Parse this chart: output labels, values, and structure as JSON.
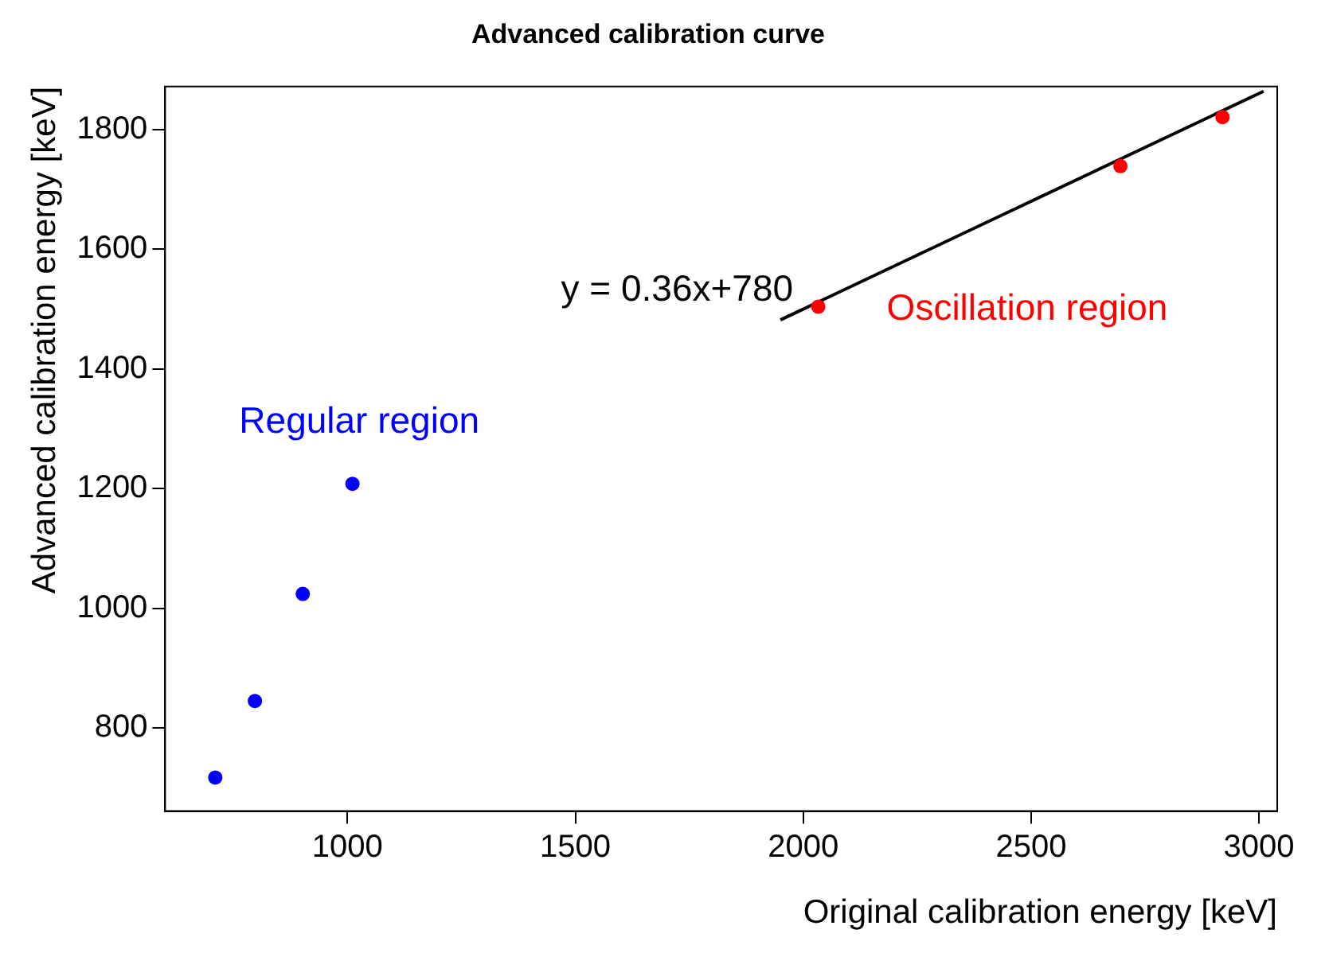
{
  "chart_data": {
    "type": "scatter",
    "title": "Advanced calibration curve",
    "xlabel": "Original calibration energy [keV]",
    "ylabel": "Advanced calibration energy [keV]",
    "series": [
      {
        "color": "#0000ff",
        "x": [
          710,
          797,
          902,
          1011
        ],
        "values": [
          717,
          845,
          1024,
          1208
        ]
      },
      {
        "color": "#ff0000",
        "x": [
          2033,
          2696,
          2920
        ],
        "values": [
          1504,
          1739,
          1821
        ]
      },
      {
        "type": "line",
        "color": "#000000",
        "marker": "none",
        "x": [
          1950,
          3010
        ],
        "values": [
          1482,
          1864
        ]
      }
    ],
    "annotations": [
      "Regular region",
      "Oscillation region",
      "y = 0.36x+780"
    ],
    "xlim": [
      600,
      3040
    ],
    "ylim": [
      661,
      1872
    ],
    "xticks": [
      1000,
      1500,
      2000,
      2500,
      3000
    ],
    "yticks": [
      800,
      1000,
      1200,
      1400,
      1600,
      1800
    ],
    "grid": false,
    "legend": false,
    "marker": "circle"
  }
}
